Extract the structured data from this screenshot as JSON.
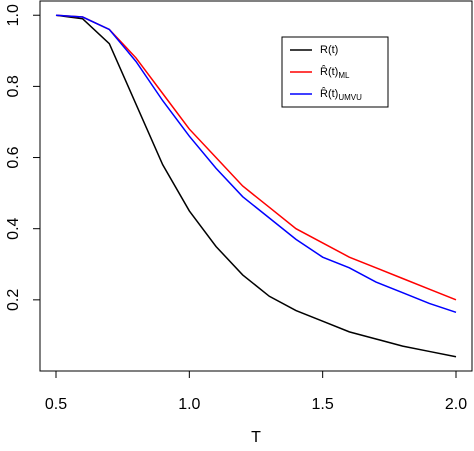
{
  "chart_data": {
    "type": "line",
    "x_label": "T",
    "x": [
      0.5,
      0.6,
      0.7,
      0.8,
      0.9,
      1.0,
      1.1,
      1.2,
      1.3,
      1.4,
      1.5,
      1.6,
      1.7,
      1.8,
      1.9,
      2.0
    ],
    "series": [
      {
        "name": "R(t)",
        "color": "#000000",
        "values": [
          1.0,
          0.99,
          0.92,
          0.75,
          0.58,
          0.45,
          0.35,
          0.27,
          0.21,
          0.17,
          0.14,
          0.11,
          0.09,
          0.07,
          0.055,
          0.04
        ]
      },
      {
        "name": "R̂(t)",
        "subscript": "ML",
        "color": "#ff0000",
        "values": [
          1.0,
          0.995,
          0.96,
          0.88,
          0.78,
          0.68,
          0.6,
          0.52,
          0.46,
          0.4,
          0.36,
          0.32,
          0.29,
          0.26,
          0.23,
          0.2
        ]
      },
      {
        "name": "R̂(t)",
        "subscript": "UMVU",
        "color": "#0000ff",
        "values": [
          1.0,
          0.995,
          0.96,
          0.87,
          0.76,
          0.66,
          0.57,
          0.49,
          0.43,
          0.37,
          0.32,
          0.29,
          0.25,
          0.22,
          0.19,
          0.165
        ]
      }
    ],
    "xlim": [
      0.44,
      2.06
    ],
    "ylim": [
      0.0,
      1.04
    ],
    "xticks": [
      0.5,
      {
        "value": 1,
        "label": "1.0"
      },
      1.5,
      {
        "value": 2,
        "label": "2.0"
      }
    ],
    "yticks": [
      0.2,
      0.4,
      0.6,
      0.8,
      {
        "value": 1,
        "label": "1.0"
      }
    ],
    "grid": false,
    "legend": "top-right"
  }
}
